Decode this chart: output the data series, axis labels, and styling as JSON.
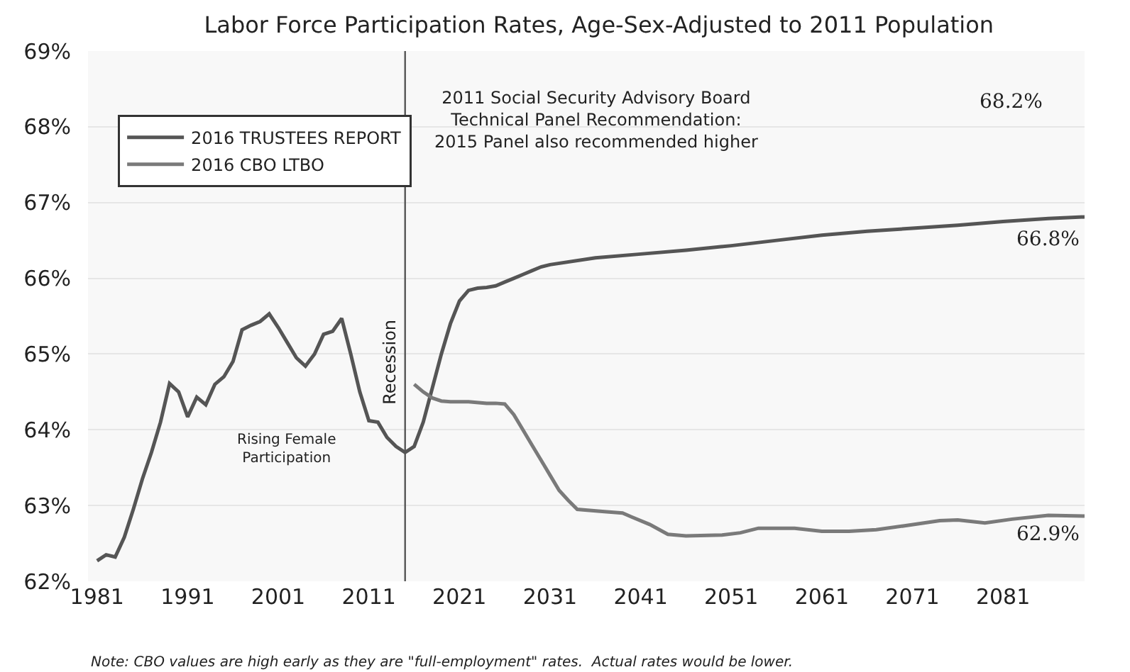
{
  "chart_data": {
    "type": "line",
    "title": "Labor Force Participation Rates, Age-Sex-Adjusted to 2011 Population",
    "xlim": [
      1980,
      2090
    ],
    "xticks": [
      1981,
      1991,
      2001,
      2011,
      2021,
      2031,
      2041,
      2051,
      2061,
      2071,
      2081
    ],
    "ylim": [
      62,
      69
    ],
    "yticks": [
      {
        "value": 62,
        "label": "62%"
      },
      {
        "value": 63,
        "label": "63%"
      },
      {
        "value": 64,
        "label": "64%"
      },
      {
        "value": 65,
        "label": "65%"
      },
      {
        "value": 66,
        "label": "66%"
      },
      {
        "value": 67,
        "label": "67%"
      },
      {
        "value": 68,
        "label": "68%"
      },
      {
        "value": 69,
        "label": "69%"
      }
    ],
    "grid": "y",
    "legend": "top left",
    "marker": "none",
    "line_style": "solid",
    "series": [
      {
        "name": "2016 TRUSTEES REPORT",
        "color": "#555555",
        "x": [
          1981,
          1982,
          1983,
          1984,
          1985,
          1986,
          1987,
          1988,
          1989,
          1990,
          1991,
          1992,
          1993,
          1994,
          1995,
          1996,
          1997,
          1998,
          1999,
          2000,
          2001,
          2002,
          2003,
          2004,
          2005,
          2006,
          2007,
          2008,
          2009,
          2010,
          2011,
          2012,
          2013,
          2014,
          2015,
          2016,
          2017,
          2018,
          2019,
          2020,
          2021,
          2022,
          2023,
          2024,
          2025,
          2026,
          2027,
          2028,
          2029,
          2030,
          2031,
          2036,
          2041,
          2046,
          2051,
          2056,
          2061,
          2066,
          2071,
          2076,
          2081,
          2086,
          2090
        ],
        "values": [
          62.27,
          62.35,
          62.32,
          62.58,
          62.95,
          63.35,
          63.7,
          64.1,
          64.61,
          64.5,
          64.17,
          64.43,
          64.33,
          64.6,
          64.7,
          64.9,
          65.32,
          65.38,
          65.43,
          65.53,
          65.35,
          65.15,
          64.95,
          64.84,
          65.0,
          65.26,
          65.3,
          65.47,
          65.0,
          64.5,
          64.12,
          64.1,
          63.9,
          63.78,
          63.7,
          63.78,
          64.1,
          64.55,
          65.0,
          65.4,
          65.7,
          65.84,
          65.87,
          65.88,
          65.9,
          65.95,
          66.0,
          66.05,
          66.1,
          66.15,
          66.18,
          66.27,
          66.32,
          66.37,
          66.43,
          66.5,
          66.57,
          66.62,
          66.66,
          66.7,
          66.75,
          66.79,
          66.81
        ]
      },
      {
        "name": "2016 CBO LTBO",
        "color": "#7a7a7a",
        "x": [
          2016,
          2017,
          2018,
          2019,
          2020,
          2022,
          2024,
          2025,
          2026,
          2027,
          2028,
          2029,
          2030,
          2031,
          2032,
          2033,
          2034,
          2037,
          2039,
          2040,
          2042,
          2044,
          2046,
          2050,
          2052,
          2054,
          2058,
          2061,
          2064,
          2067,
          2070,
          2074,
          2076,
          2079,
          2082,
          2086,
          2090
        ],
        "values": [
          64.6,
          64.5,
          64.42,
          64.38,
          64.37,
          64.37,
          64.35,
          64.35,
          64.34,
          64.2,
          64.0,
          63.8,
          63.6,
          63.4,
          63.2,
          63.07,
          62.95,
          62.92,
          62.9,
          62.85,
          62.75,
          62.62,
          62.6,
          62.61,
          62.64,
          62.7,
          62.7,
          62.66,
          62.66,
          62.68,
          62.73,
          62.8,
          62.81,
          62.77,
          62.82,
          62.87,
          62.86
        ]
      }
    ],
    "ref_lines": [
      {
        "axis": "x",
        "value": 2015,
        "label": "Recession",
        "color": "#555555",
        "line_style": "solid"
      }
    ],
    "annotations": [
      {
        "text": "66.8%",
        "x": 2086,
        "y": 66.8
      },
      {
        "text": "62.9%",
        "x": 2086,
        "y": 62.9
      },
      "68.2%",
      "2011 Social Security Advisory Board\nTechnical Panel Recommendation:\n2015 Panel also recommended higher",
      "Rising Female\nParticipation",
      "Note: CBO values are high early as they are \"full-employment\" rates.  Actual rates would be lower."
    ]
  }
}
